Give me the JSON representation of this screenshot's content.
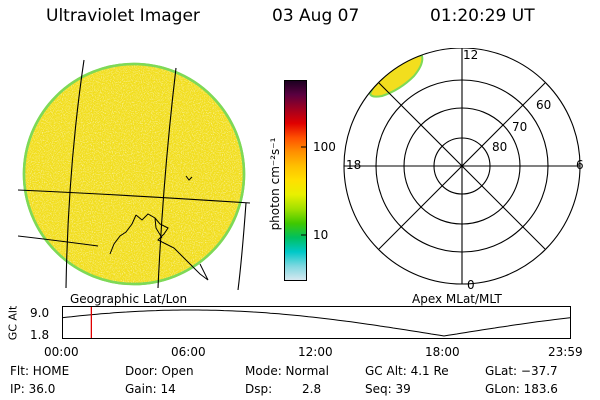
{
  "header": {
    "instrument": "Ultraviolet Imager",
    "date": "03 Aug 07",
    "time": "01:20:29 UT"
  },
  "colorbar": {
    "unit_label": "photon cm⁻²s⁻¹",
    "ticks": [
      "100",
      "10"
    ],
    "scale": "log",
    "colors": [
      "#1a0020",
      "#5a0040",
      "#a00020",
      "#e00000",
      "#ff5000",
      "#ff9000",
      "#ffc000",
      "#ffe000",
      "#e8f000",
      "#a0e000",
      "#40c800",
      "#00c060",
      "#00c8c8",
      "#80d8e0",
      "#d8e8f0"
    ]
  },
  "left_panel": {
    "caption": "Geographic Lat/Lon",
    "disk_color": "#f2de1e",
    "rim_color": "#7ed957"
  },
  "right_panel": {
    "caption": "Apex MLat/MLT",
    "mlt_labels": {
      "top": "12",
      "left": "18",
      "right": "6",
      "bottom": "0"
    },
    "mlat_labels": [
      "60",
      "70",
      "80"
    ],
    "oval_color": "#f2de1e"
  },
  "altitude_plot": {
    "ylabel": "GC Alt",
    "ytick_top": "9.0",
    "ytick_bottom": "1.8",
    "xticks": [
      "00:00",
      "06:00",
      "12:00",
      "18:00",
      "23:59"
    ],
    "current_time_marker_hour": 1.34,
    "marker_color": "#e00000"
  },
  "status": {
    "row1": {
      "flt": "Flt: HOME",
      "door": "Door: Open",
      "mode": "Mode: Normal",
      "gcalt": "GC Alt: 4.1 Re",
      "glat": "GLat: −37.7"
    },
    "row2": {
      "ip": "IP: 36.0",
      "gain": "Gain: 14",
      "dsp_label": "Dsp:",
      "dsp_value": "2.8",
      "seq": "Seq: 39",
      "glon": "GLon: 183.6"
    }
  }
}
